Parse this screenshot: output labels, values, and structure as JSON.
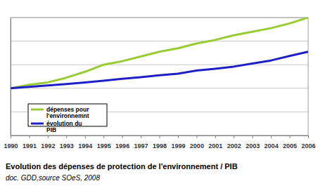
{
  "chart_data": {
    "type": "line",
    "title": "Evolution des dépenses de protection de l'environnement / PIB",
    "subtitle": "doc. GDD,source SOeS, 2008",
    "x": [
      1990,
      1991,
      1992,
      1993,
      1994,
      1995,
      1996,
      1997,
      1998,
      1999,
      2000,
      2001,
      2002,
      2003,
      2004,
      2005,
      2006
    ],
    "xlim": [
      1990,
      2006
    ],
    "xticks": [
      1990,
      1991,
      1992,
      1993,
      1994,
      1995,
      1996,
      1997,
      1998,
      1999,
      2000,
      2001,
      2002,
      2003,
      2004,
      2005,
      2006
    ],
    "ylim": [
      80,
      130
    ],
    "yticks": [
      80,
      90,
      100,
      110,
      120,
      130
    ],
    "grid": true,
    "tick_labels": "x",
    "legend": "lower left",
    "series": [
      {
        "name": "dépenses pour l'environnemnt",
        "color": "#99cc33",
        "values": [
          100,
          101.5,
          102.5,
          104.5,
          107,
          110,
          111.5,
          113.5,
          115.5,
          117,
          119,
          120.5,
          122.5,
          124,
          125.5,
          127.5,
          130
        ]
      },
      {
        "name": "évolution du PIB",
        "color": "#1f1fc8",
        "values": [
          100,
          100.6,
          101.2,
          101.8,
          102.5,
          103.2,
          104,
          104.7,
          105.5,
          106.2,
          107.5,
          108.3,
          109.2,
          110.5,
          111.8,
          113.7,
          115.5
        ]
      }
    ]
  }
}
